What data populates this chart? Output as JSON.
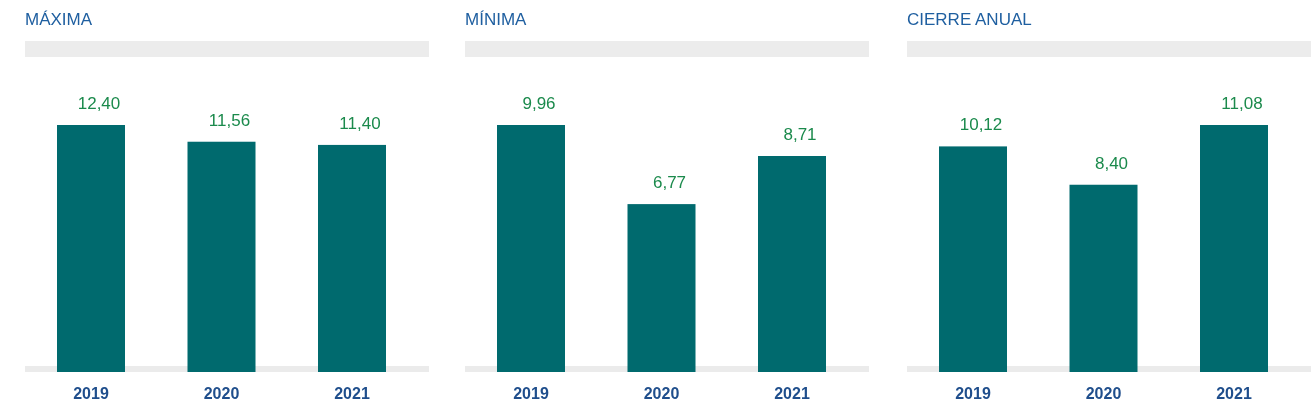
{
  "chart_data": [
    {
      "type": "bar",
      "title": "MÁXIMA",
      "categories": [
        "2019",
        "2020",
        "2021"
      ],
      "values": [
        12.4,
        11.56,
        11.4
      ],
      "value_labels": [
        "12,40",
        "11,56",
        "11,40"
      ],
      "color": "#006a6e"
    },
    {
      "type": "bar",
      "title": "MÍNIMA",
      "categories": [
        "2019",
        "2020",
        "2021"
      ],
      "values": [
        9.96,
        6.77,
        8.71
      ],
      "value_labels": [
        "9,96",
        "6,77",
        "8,71"
      ],
      "color": "#006a6e"
    },
    {
      "type": "bar",
      "title": "CIERRE ANUAL",
      "categories": [
        "2019",
        "2020",
        "2021"
      ],
      "values": [
        10.12,
        8.4,
        11.08
      ],
      "value_labels": [
        "10,12",
        "8,40",
        "11,08"
      ],
      "color": "#006a6e"
    }
  ]
}
